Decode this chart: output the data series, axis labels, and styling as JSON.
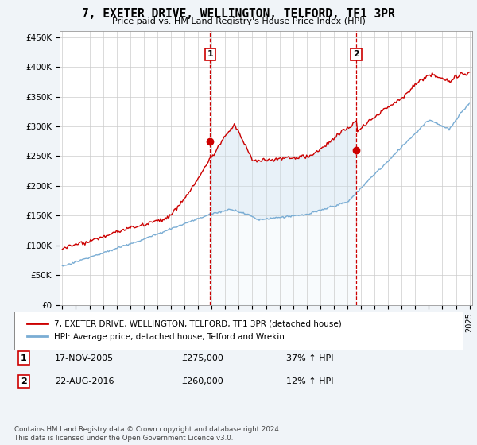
{
  "title": "7, EXETER DRIVE, WELLINGTON, TELFORD, TF1 3PR",
  "subtitle": "Price paid vs. HM Land Registry's House Price Index (HPI)",
  "ylabel_ticks": [
    "£0",
    "£50K",
    "£100K",
    "£150K",
    "£200K",
    "£250K",
    "£300K",
    "£350K",
    "£400K",
    "£450K"
  ],
  "ytick_vals": [
    0,
    50000,
    100000,
    150000,
    200000,
    250000,
    300000,
    350000,
    400000,
    450000
  ],
  "ylim": [
    0,
    460000
  ],
  "xlim_start": 1994.8,
  "xlim_end": 2025.2,
  "sale1_date": 2005.88,
  "sale1_price": 275000,
  "sale1_label": "1",
  "sale2_date": 2016.64,
  "sale2_price": 260000,
  "sale2_label": "2",
  "hpi_color": "#7aadd4",
  "price_color": "#cc0000",
  "vline_color": "#cc0000",
  "fill_color": "#cce0f0",
  "background_color": "#f0f4f8",
  "plot_bg_color": "#ffffff",
  "legend_label_price": "7, EXETER DRIVE, WELLINGTON, TELFORD, TF1 3PR (detached house)",
  "legend_label_hpi": "HPI: Average price, detached house, Telford and Wrekin",
  "annotation1_date": "17-NOV-2005",
  "annotation1_price": "£275,000",
  "annotation1_hpi": "37% ↑ HPI",
  "annotation2_date": "22-AUG-2016",
  "annotation2_price": "£260,000",
  "annotation2_hpi": "12% ↑ HPI",
  "footer": "Contains HM Land Registry data © Crown copyright and database right 2024.\nThis data is licensed under the Open Government Licence v3.0."
}
